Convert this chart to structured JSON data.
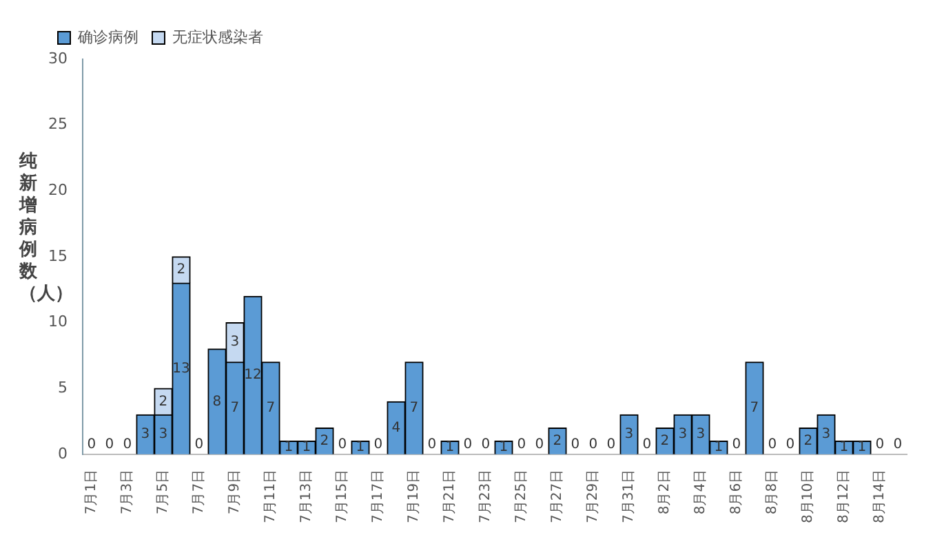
{
  "chart_data": {
    "type": "bar",
    "ylabel": "纯新增病例数（人）",
    "stacked": true,
    "legend": "top left",
    "grid": false,
    "data_labels": true,
    "categories": [
      "7月1日",
      null,
      "7月3日",
      null,
      "7月5日",
      null,
      "7月7日",
      null,
      "7月9日",
      null,
      "7月11日",
      null,
      "7月13日",
      null,
      "7月15日",
      null,
      "7月17日",
      null,
      "7月19日",
      null,
      "7月21日",
      null,
      "7月23日",
      null,
      "7月25日",
      null,
      "7月27日",
      null,
      "7月29日",
      null,
      "7月31日",
      null,
      "8月2日",
      null,
      "8月4日",
      null,
      "8月6日",
      null,
      "8月8日",
      null,
      "8月10日",
      null,
      "8月12日",
      null,
      "8月14日",
      null
    ],
    "ylim": [
      0,
      30
    ],
    "yticks": [
      0,
      5,
      10,
      15,
      20,
      25,
      30
    ],
    "series": [
      {
        "name": "确诊病例",
        "color": "#5b9bd5",
        "values": [
          0,
          0,
          0,
          3,
          3,
          13,
          0,
          8,
          7,
          12,
          7,
          1,
          1,
          2,
          0,
          1,
          0,
          4,
          7,
          0,
          1,
          0,
          0,
          1,
          0,
          0,
          2,
          0,
          0,
          0,
          3,
          0,
          2,
          3,
          3,
          1,
          0,
          7,
          0,
          0,
          2,
          3,
          1,
          1,
          0,
          0
        ]
      },
      {
        "name": "无症状感染者",
        "color": "#c5d9f1",
        "values": [
          null,
          null,
          null,
          null,
          2,
          2,
          null,
          null,
          3,
          null,
          null,
          null,
          null,
          null,
          null,
          null,
          null,
          null,
          null,
          null,
          null,
          null,
          null,
          null,
          null,
          null,
          null,
          null,
          null,
          null,
          null,
          null,
          null,
          null,
          null,
          null,
          null,
          null,
          null,
          null,
          null,
          null,
          null,
          null,
          null,
          null
        ]
      }
    ]
  }
}
